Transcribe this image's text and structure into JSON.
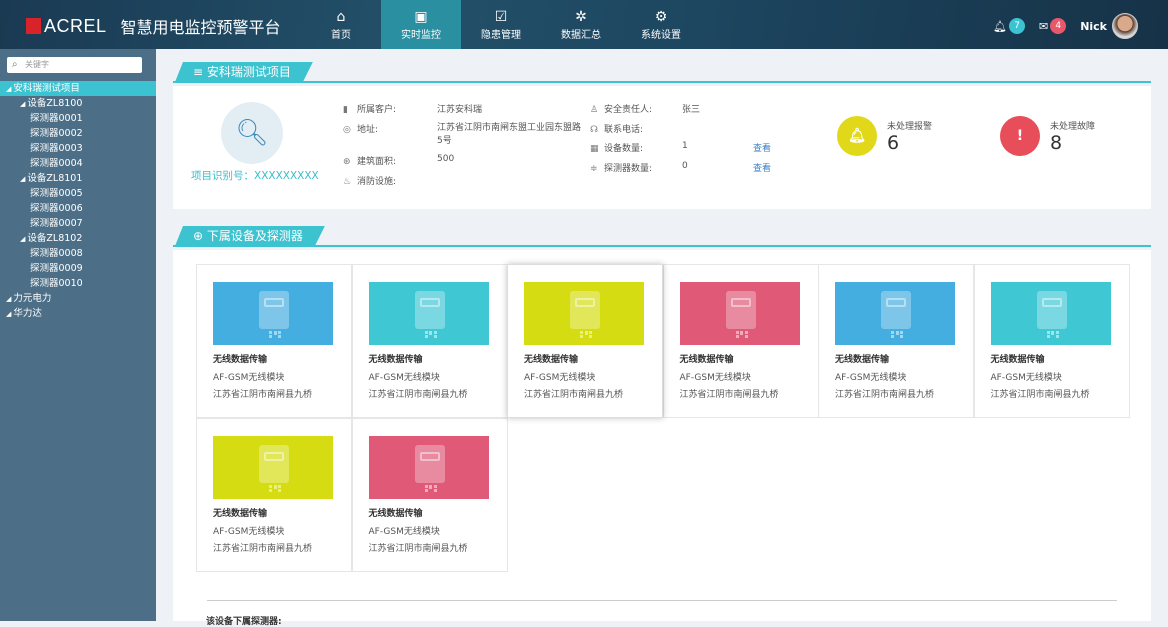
{
  "header": {
    "brand": "ACREL",
    "title": "智慧用电监控预警平台",
    "nav": [
      {
        "label": "首页",
        "icon": "home-icon",
        "glyph": "⌂"
      },
      {
        "label": "实时监控",
        "icon": "monitor-search-icon",
        "glyph": "▣"
      },
      {
        "label": "隐患管理",
        "icon": "clipboard-check-icon",
        "glyph": "☑"
      },
      {
        "label": "数据汇总",
        "icon": "data-summary-icon",
        "glyph": "✲"
      },
      {
        "label": "系统设置",
        "icon": "gears-icon",
        "glyph": "⚙"
      }
    ],
    "active_nav": "实时监控",
    "notifications": "7",
    "messages": "4",
    "user": "Nick",
    "colors": {
      "notify": "#3cc3d2",
      "message": "#e8576a",
      "active": "#2a8fa0"
    }
  },
  "sidebar": {
    "search_placeholder": "关键字",
    "tree": [
      {
        "label": "安科瑞测试项目",
        "level": 0,
        "expanded": true,
        "active": true
      },
      {
        "label": "设备ZL8100",
        "level": 1,
        "expanded": true
      },
      {
        "label": "探测器0001",
        "level": 2
      },
      {
        "label": "探测器0002",
        "level": 2
      },
      {
        "label": "探测器0003",
        "level": 2
      },
      {
        "label": "探测器0004",
        "level": 2
      },
      {
        "label": "设备ZL8101",
        "level": 1,
        "expanded": true
      },
      {
        "label": "探测器0005",
        "level": 2
      },
      {
        "label": "探测器0006",
        "level": 2
      },
      {
        "label": "探测器0007",
        "level": 2
      },
      {
        "label": "设备ZL8102",
        "level": 1,
        "expanded": true
      },
      {
        "label": "探测器0008",
        "level": 2
      },
      {
        "label": "探测器0009",
        "level": 2
      },
      {
        "label": "探测器0010",
        "level": 2
      },
      {
        "label": "力元电力",
        "level": 0,
        "expanded": true
      },
      {
        "label": "华力达",
        "level": 0,
        "expanded": true
      }
    ]
  },
  "project": {
    "section_title": "≡ 安科瑞测试项目",
    "id_label": "项目识别号：XXXXXXXXX",
    "customer_label": "所属客户:",
    "customer": "江苏安科瑞",
    "address_label": "地址:",
    "address": "江苏省江阴市南闸东盟工业园东盟路5号",
    "area_label": "建筑面积:",
    "area": "500",
    "fire_label": "消防设施:",
    "owner_label": "安全责任人:",
    "owner": "张三",
    "phone_label": "联系电话:",
    "device_count_label": "设备数量:",
    "device_count": "1",
    "detector_count_label": "探测器数量:",
    "detector_count": "0",
    "view_label": "查看",
    "alarm_label": "未处理报警",
    "alarm_count": "6",
    "fault_label": "未处理故障",
    "fault_count": "8",
    "colors": {
      "alarm": "#e2d81a",
      "fault": "#e84d5a"
    }
  },
  "devices": {
    "section_title": "⊕ 下属设备及探测器",
    "items": [
      {
        "name": "无线数据传输",
        "model": "AF-GSM无线模块",
        "address": "江苏省江阴市南闸县九桥",
        "color": "#45aee0"
      },
      {
        "name": "无线数据传输",
        "model": "AF-GSM无线模块",
        "address": "江苏省江阴市南闸县九桥",
        "color": "#3fc8d4"
      },
      {
        "name": "无线数据传输",
        "model": "AF-GSM无线模块",
        "address": "江苏省江阴市南闸县九桥",
        "color": "#d5dd12"
      },
      {
        "name": "无线数据传输",
        "model": "AF-GSM无线模块",
        "address": "江苏省江阴市南闸县九桥",
        "color": "#e05a78"
      },
      {
        "name": "无线数据传输",
        "model": "AF-GSM无线模块",
        "address": "江苏省江阴市南闸县九桥",
        "color": "#45aee0"
      },
      {
        "name": "无线数据传输",
        "model": "AF-GSM无线模块",
        "address": "江苏省江阴市南闸县九桥",
        "color": "#3fc8d4"
      },
      {
        "name": "无线数据传输",
        "model": "AF-GSM无线模块",
        "address": "江苏省江阴市南闸县九桥",
        "color": "#d5dd12"
      },
      {
        "name": "无线数据传输",
        "model": "AF-GSM无线模块",
        "address": "江苏省江阴市南闸县九桥",
        "color": "#e05a78"
      }
    ],
    "footer_label": "该设备下属探测器:"
  }
}
